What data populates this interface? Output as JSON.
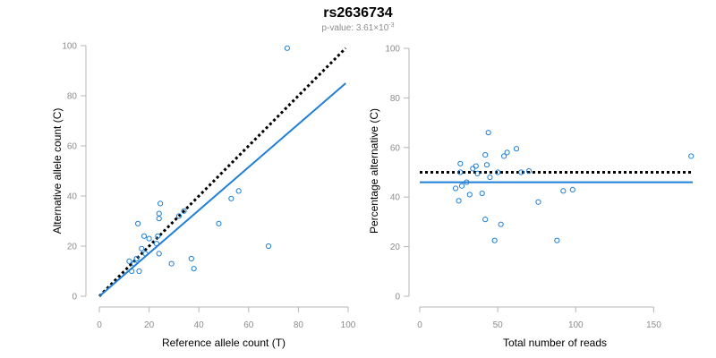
{
  "page": {
    "title": "rs2636734",
    "subtitle": "p-value: 3.61×10",
    "subtitle_exponent": "-3"
  },
  "colors": {
    "points": "#1f7fd6",
    "fit_line": "#1f7fd6",
    "reference_line": "#000000",
    "axis": "#b4b4b4",
    "tick_text": "#8c8c8c"
  },
  "chart_data": [
    {
      "type": "scatter",
      "title": "",
      "xlabel": "Reference allele count (T)",
      "ylabel": "Alternative allele count (C)",
      "xlim": [
        0,
        100
      ],
      "ylim": [
        0,
        100
      ],
      "xticks": [
        0,
        20,
        40,
        60,
        80,
        100
      ],
      "yticks": [
        0,
        20,
        40,
        60,
        80,
        100
      ],
      "grid": false,
      "points": [
        [
          75.5,
          99
        ],
        [
          68,
          20
        ],
        [
          56,
          42
        ],
        [
          53,
          39
        ],
        [
          48,
          29
        ],
        [
          38,
          11
        ],
        [
          37,
          15
        ],
        [
          34,
          34
        ],
        [
          32,
          32
        ],
        [
          29,
          13
        ],
        [
          24.5,
          37
        ],
        [
          24,
          33
        ],
        [
          24,
          31
        ],
        [
          24,
          17
        ],
        [
          23.5,
          24
        ],
        [
          23,
          21
        ],
        [
          20,
          23
        ],
        [
          18.5,
          17
        ],
        [
          18,
          24
        ],
        [
          17,
          19
        ],
        [
          15.5,
          29
        ],
        [
          16,
          10
        ],
        [
          15,
          15
        ],
        [
          14,
          13
        ],
        [
          13,
          10
        ],
        [
          12,
          14
        ]
      ],
      "lines": [
        {
          "name": "",
          "style": "dotted",
          "color": "#000000",
          "from": [
            0,
            0
          ],
          "to": [
            99,
            99
          ]
        },
        {
          "name": "",
          "style": "solid",
          "color": "#1f7fd6",
          "from": [
            0,
            0
          ],
          "to": [
            99,
            85
          ]
        }
      ]
    },
    {
      "type": "scatter",
      "title": "",
      "xlabel": "Total number of reads",
      "ylabel": "Percentage alternative (C)",
      "xlim": [
        0,
        175
      ],
      "ylim": [
        0,
        100
      ],
      "xticks": [
        0,
        50,
        100,
        150
      ],
      "yticks": [
        0,
        20,
        40,
        60,
        80,
        100
      ],
      "grid": false,
      "points": [
        [
          174,
          56.5
        ],
        [
          98,
          43
        ],
        [
          92,
          42.5
        ],
        [
          88,
          22.5
        ],
        [
          76,
          38
        ],
        [
          70,
          50.5
        ],
        [
          65,
          50
        ],
        [
          62,
          59.5
        ],
        [
          56,
          58
        ],
        [
          54,
          56.5
        ],
        [
          52,
          29
        ],
        [
          50,
          50
        ],
        [
          48,
          22.5
        ],
        [
          45,
          48
        ],
        [
          44,
          66
        ],
        [
          43,
          53
        ],
        [
          42,
          57
        ],
        [
          42,
          31
        ],
        [
          40,
          41.5
        ],
        [
          37,
          49.5
        ],
        [
          36,
          52.5
        ],
        [
          34,
          51.5
        ],
        [
          32,
          41
        ],
        [
          30,
          46
        ],
        [
          27,
          44.5
        ],
        [
          26,
          53.5
        ],
        [
          26,
          50
        ],
        [
          25,
          38.5
        ],
        [
          23,
          43.5
        ]
      ],
      "lines": [
        {
          "name": "",
          "style": "dotted",
          "color": "#000000",
          "from": [
            0,
            50
          ],
          "to": [
            175,
            50
          ]
        },
        {
          "name": "",
          "style": "solid",
          "color": "#1f7fd6",
          "from": [
            0,
            46
          ],
          "to": [
            175,
            46
          ]
        }
      ]
    }
  ]
}
